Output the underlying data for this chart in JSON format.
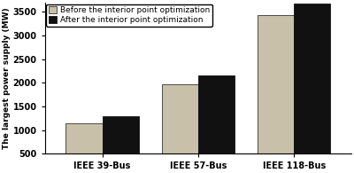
{
  "categories": [
    "IEEE 39-Bus",
    "IEEE 57-Bus",
    "IEEE 118-Bus"
  ],
  "before": [
    1150,
    1960,
    3430
  ],
  "after": [
    1300,
    2150,
    3680
  ],
  "bar_color_before": "#c8c0a8",
  "bar_color_after": "#111111",
  "ylabel": "The largest power supply (MW)",
  "ylim": [
    500,
    3700
  ],
  "yticks": [
    500,
    1000,
    1500,
    2000,
    2500,
    3000,
    3500
  ],
  "legend_before": "Before the interior point optimization",
  "legend_after": "After the interior point optimization",
  "bar_width": 0.38,
  "label_fontsize": 6.5,
  "tick_fontsize": 7,
  "legend_fontsize": 6.5,
  "bg_color": "#f5f5f0"
}
